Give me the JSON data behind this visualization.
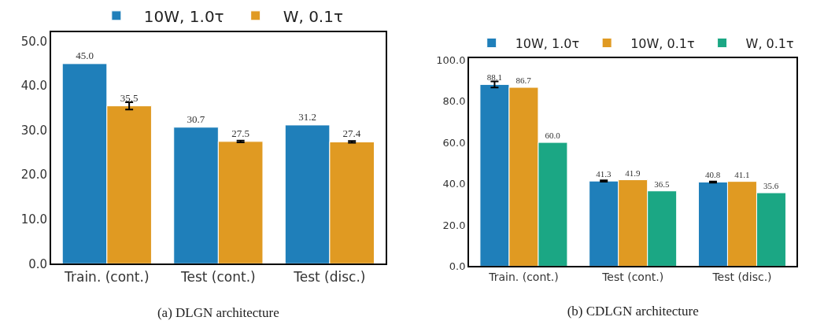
{
  "chart_data": [
    {
      "type": "bar",
      "xlabel": "(a) DLGN architecture",
      "categories": [
        "Train. (cont.)",
        "Test (cont.)",
        "Test (disc.)"
      ],
      "series": [
        {
          "name": "10W, 1.0τ",
          "color": "#1f7fba",
          "values": [
            45.0,
            30.7,
            31.2
          ],
          "value_labels": [
            "45.0",
            "30.7",
            "31.2"
          ],
          "errors": [
            null,
            null,
            null
          ]
        },
        {
          "name": "W, 0.1τ",
          "color": "#e09a22",
          "values": [
            35.5,
            27.5,
            27.4
          ],
          "value_labels": [
            "35.5",
            "27.5",
            "27.4"
          ],
          "errors": [
            0.8,
            0.2,
            0.2
          ]
        }
      ],
      "ylim": [
        0,
        52
      ],
      "yticks": [
        {
          "value": 0,
          "label": "0.0"
        },
        {
          "value": 10,
          "label": "10.0"
        },
        {
          "value": 20,
          "label": "20.0"
        },
        {
          "value": 30,
          "label": "30.0"
        },
        {
          "value": 40,
          "label": "40.0"
        },
        {
          "value": 50,
          "label": "50.0"
        }
      ],
      "legend": "top"
    },
    {
      "type": "bar",
      "xlabel": "(b) CDLGN architecture",
      "categories": [
        "Train. (cont.)",
        "Test (cont.)",
        "Test (disc.)"
      ],
      "series": [
        {
          "name": "10W, 1.0τ",
          "color": "#1f7fba",
          "values": [
            88.1,
            41.3,
            40.8
          ],
          "value_labels": [
            "88.1",
            "41.3",
            "40.8"
          ],
          "errors": [
            1.5,
            0.3,
            0.3
          ]
        },
        {
          "name": "10W, 0.1τ",
          "color": "#e09a22",
          "values": [
            86.7,
            41.9,
            41.1
          ],
          "value_labels": [
            "86.7",
            "41.9",
            "41.1"
          ],
          "errors": [
            null,
            null,
            null
          ]
        },
        {
          "name": "W, 0.1τ",
          "color": "#1ba784",
          "values": [
            60.0,
            36.5,
            35.6
          ],
          "value_labels": [
            "60.0",
            "36.5",
            "35.6"
          ],
          "errors": [
            null,
            null,
            null
          ]
        }
      ],
      "ylim": [
        0,
        101
      ],
      "yticks": [
        {
          "value": 0,
          "label": "0.0"
        },
        {
          "value": 20,
          "label": "20.0"
        },
        {
          "value": 40,
          "label": "40.0"
        },
        {
          "value": 60,
          "label": "60.0"
        },
        {
          "value": 80,
          "label": "80.0"
        },
        {
          "value": 100,
          "label": "100.0"
        }
      ],
      "legend": "top"
    }
  ]
}
